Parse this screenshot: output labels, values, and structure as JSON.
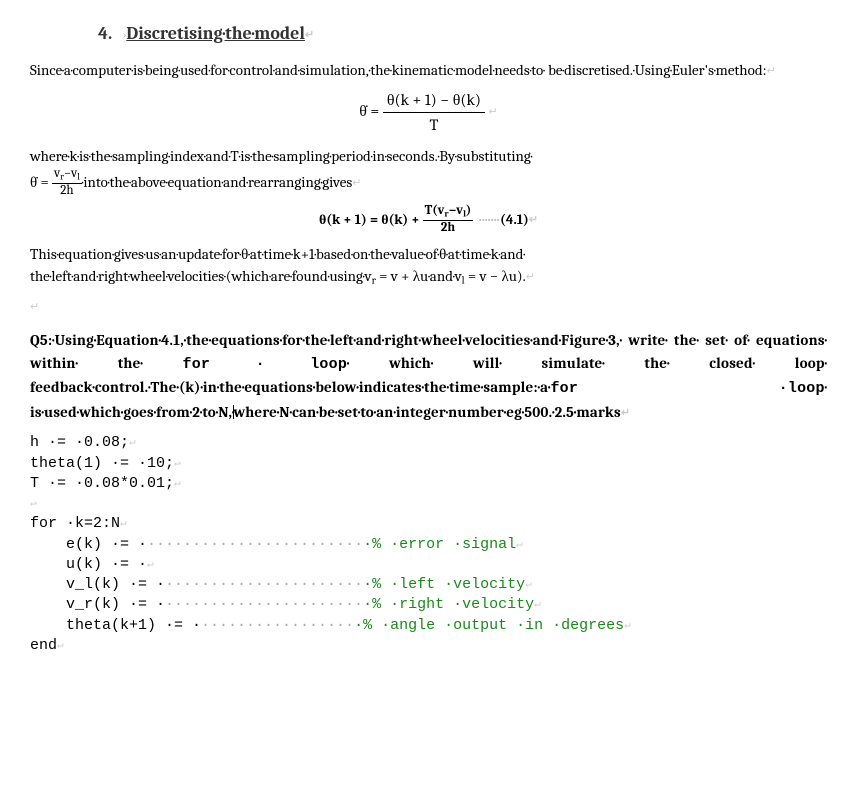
{
  "heading": {
    "num": "4.",
    "text": "Discretising·the·model"
  },
  "p1": "Since·a·computer·is·being·used·for·control·and·simulation,·the·kinematic·model·needs·to· be·discretised.·Using·Euler's·method:",
  "eq1": {
    "lhs": "θ̇  = ",
    "num": "θ(k + 1) − θ(k)",
    "den": "T"
  },
  "p2a": "where·k·is·the·sampling·index·and·T·is·the·sampling·period·in·seconds.·By·substituting·",
  "p2b_lhs": "θ̇ = ",
  "p2b_num": "v",
  "p2b_r": "r",
  "p2b_minus": "−v",
  "p2b_l": "l",
  "p2b_den": "2h",
  "p2c": "·into·the·above·equation·and·rearranging·gives",
  "eq2": {
    "lhs": "θ(k + 1) = θ(k) + ",
    "num_a": "T(v",
    "num_r": "r",
    "num_b": "−v",
    "num_l": "l",
    "num_c": ")",
    "den": "2h",
    "label": "(4.1)"
  },
  "p3a": "This·equation·gives·us·an·update·for·θ·at·time·k+1·based·on·the·value·of·θ·at·time·k·and· the·left·and·right·wheel·velocities·(which·are·found·using·v",
  "p3r": "r",
  "p3b": " = v + λu·and·v",
  "p3l": "l",
  "p3c": " = v − λu).",
  "q5a": "Q5:·Using·Equation·4.1,·the·equations·for·the·left·and·right·wheel·velocities·and·Figure·3,· write· the· set· of· equations· within· the· ",
  "q5for": "for · loop",
  "q5b": "· which· will· simulate· the· closed· loop· feedback·control.·The·(k)·in·the·equations·below·indicates·the·time·sample:·a·",
  "q5for2": "for ·loop",
  "q5c": "· is·used·which·goes·from·2·to·N,·",
  "q5d": "where·N·can·be·set·to·an·integer·number·eg·500.·2.5·marks",
  "code": {
    "l1": "h ·= ·0.08;",
    "l2": "theta(1) ·= ·10;",
    "l3": "T ·= ·0.08*0.01;",
    "l4": "",
    "l5": "for ·k=2:N",
    "l6a": "    e(k) ·= ·",
    "l6dots": "························",
    "l6c": "·% ·error ·signal",
    "l7": "    u(k) ·= ·",
    "l8a": "    v_l(k) ·= ·",
    "l8dots": "······················",
    "l8c": "·% ·left ·velocity",
    "l9a": "    v_r(k) ·= ·",
    "l9dots": "······················",
    "l9c": "·% ·right ·velocity",
    "l10a": "    theta(k+1) ·= ·",
    "l10dots": "·················",
    "l10c": "·% ·angle ·output ·in ·degrees",
    "l11": "end"
  }
}
